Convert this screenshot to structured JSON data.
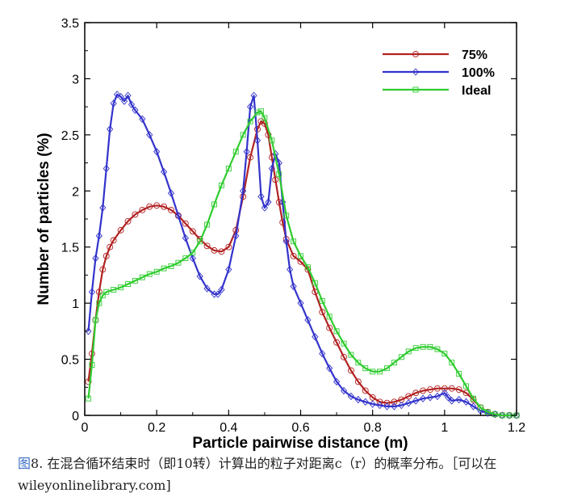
{
  "chart_data": {
    "type": "line",
    "title": "",
    "xlabel": "Particle pairwise distance (m)",
    "ylabel": "Number of particles (%)",
    "xlim": [
      0,
      1.2
    ],
    "ylim": [
      0,
      3.5
    ],
    "x_ticks": [
      0,
      0.2,
      0.4,
      0.6,
      0.8,
      1,
      1.2
    ],
    "x_tick_labels": [
      "0",
      "0.2",
      "0.4",
      "0.6",
      "0.8",
      "1",
      "1.2"
    ],
    "y_ticks": [
      0,
      0.5,
      1,
      1.5,
      2,
      2.5,
      3,
      3.5
    ],
    "y_tick_labels": [
      "0",
      "0.5",
      "1",
      "1.5",
      "2",
      "2.5",
      "3",
      "3.5"
    ],
    "legend_position": "top-right",
    "grid": false,
    "series": [
      {
        "name": "75%",
        "color": "#b22222",
        "marker": "circle",
        "points": [
          [
            0.01,
            0.3
          ],
          [
            0.02,
            0.55
          ],
          [
            0.03,
            0.85
          ],
          [
            0.04,
            1.1
          ],
          [
            0.05,
            1.3
          ],
          [
            0.06,
            1.42
          ],
          [
            0.07,
            1.5
          ],
          [
            0.08,
            1.56
          ],
          [
            0.1,
            1.65
          ],
          [
            0.12,
            1.73
          ],
          [
            0.14,
            1.79
          ],
          [
            0.16,
            1.83
          ],
          [
            0.18,
            1.86
          ],
          [
            0.2,
            1.87
          ],
          [
            0.22,
            1.86
          ],
          [
            0.24,
            1.83
          ],
          [
            0.26,
            1.78
          ],
          [
            0.28,
            1.71
          ],
          [
            0.3,
            1.64
          ],
          [
            0.32,
            1.57
          ],
          [
            0.34,
            1.51
          ],
          [
            0.36,
            1.47
          ],
          [
            0.38,
            1.46
          ],
          [
            0.4,
            1.5
          ],
          [
            0.42,
            1.65
          ],
          [
            0.44,
            1.95
          ],
          [
            0.46,
            2.3
          ],
          [
            0.48,
            2.55
          ],
          [
            0.49,
            2.62
          ],
          [
            0.5,
            2.6
          ],
          [
            0.51,
            2.5
          ],
          [
            0.52,
            2.3
          ],
          [
            0.53,
            2.1
          ],
          [
            0.54,
            1.9
          ],
          [
            0.55,
            1.72
          ],
          [
            0.56,
            1.57
          ],
          [
            0.58,
            1.42
          ],
          [
            0.6,
            1.37
          ],
          [
            0.62,
            1.3
          ],
          [
            0.64,
            1.1
          ],
          [
            0.66,
            0.92
          ],
          [
            0.68,
            0.78
          ],
          [
            0.7,
            0.65
          ],
          [
            0.72,
            0.52
          ],
          [
            0.74,
            0.4
          ],
          [
            0.76,
            0.3
          ],
          [
            0.78,
            0.22
          ],
          [
            0.8,
            0.16
          ],
          [
            0.82,
            0.12
          ],
          [
            0.84,
            0.11
          ],
          [
            0.86,
            0.12
          ],
          [
            0.88,
            0.14
          ],
          [
            0.9,
            0.17
          ],
          [
            0.92,
            0.2
          ],
          [
            0.94,
            0.22
          ],
          [
            0.96,
            0.23
          ],
          [
            0.98,
            0.24
          ],
          [
            1.0,
            0.24
          ],
          [
            1.02,
            0.24
          ],
          [
            1.04,
            0.23
          ],
          [
            1.06,
            0.2
          ],
          [
            1.08,
            0.14
          ],
          [
            1.1,
            0.07
          ],
          [
            1.12,
            0.03
          ],
          [
            1.14,
            0.01
          ],
          [
            1.16,
            0.0
          ],
          [
            1.18,
            0.0
          ],
          [
            1.2,
            0.0
          ]
        ]
      },
      {
        "name": "100%",
        "color": "#3333cc",
        "marker": "diamond",
        "points": [
          [
            0.01,
            0.75
          ],
          [
            0.02,
            1.1
          ],
          [
            0.03,
            1.4
          ],
          [
            0.04,
            1.6
          ],
          [
            0.05,
            1.85
          ],
          [
            0.06,
            2.2
          ],
          [
            0.07,
            2.55
          ],
          [
            0.08,
            2.78
          ],
          [
            0.09,
            2.86
          ],
          [
            0.1,
            2.84
          ],
          [
            0.11,
            2.8
          ],
          [
            0.12,
            2.85
          ],
          [
            0.13,
            2.77
          ],
          [
            0.14,
            2.72
          ],
          [
            0.16,
            2.64
          ],
          [
            0.18,
            2.5
          ],
          [
            0.2,
            2.35
          ],
          [
            0.22,
            2.17
          ],
          [
            0.24,
            1.98
          ],
          [
            0.26,
            1.78
          ],
          [
            0.28,
            1.58
          ],
          [
            0.3,
            1.4
          ],
          [
            0.32,
            1.24
          ],
          [
            0.34,
            1.13
          ],
          [
            0.36,
            1.08
          ],
          [
            0.37,
            1.08
          ],
          [
            0.38,
            1.12
          ],
          [
            0.4,
            1.3
          ],
          [
            0.42,
            1.6
          ],
          [
            0.44,
            2.0
          ],
          [
            0.45,
            2.35
          ],
          [
            0.46,
            2.75
          ],
          [
            0.47,
            2.85
          ],
          [
            0.48,
            2.45
          ],
          [
            0.49,
            1.95
          ],
          [
            0.5,
            1.85
          ],
          [
            0.51,
            1.9
          ],
          [
            0.52,
            2.2
          ],
          [
            0.53,
            2.33
          ],
          [
            0.54,
            2.25
          ],
          [
            0.55,
            1.9
          ],
          [
            0.56,
            1.55
          ],
          [
            0.57,
            1.3
          ],
          [
            0.58,
            1.15
          ],
          [
            0.6,
            1.0
          ],
          [
            0.62,
            0.85
          ],
          [
            0.64,
            0.7
          ],
          [
            0.66,
            0.55
          ],
          [
            0.68,
            0.42
          ],
          [
            0.7,
            0.3
          ],
          [
            0.72,
            0.22
          ],
          [
            0.74,
            0.17
          ],
          [
            0.76,
            0.14
          ],
          [
            0.78,
            0.12
          ],
          [
            0.8,
            0.1
          ],
          [
            0.82,
            0.09
          ],
          [
            0.84,
            0.08
          ],
          [
            0.86,
            0.08
          ],
          [
            0.88,
            0.09
          ],
          [
            0.9,
            0.11
          ],
          [
            0.92,
            0.13
          ],
          [
            0.94,
            0.15
          ],
          [
            0.96,
            0.16
          ],
          [
            0.98,
            0.17
          ],
          [
            1.0,
            0.2
          ],
          [
            1.01,
            0.16
          ],
          [
            1.02,
            0.13
          ],
          [
            1.04,
            0.14
          ],
          [
            1.06,
            0.12
          ],
          [
            1.08,
            0.08
          ],
          [
            1.1,
            0.04
          ],
          [
            1.12,
            0.02
          ],
          [
            1.14,
            0.01
          ],
          [
            1.16,
            0.0
          ],
          [
            1.18,
            0.0
          ],
          [
            1.2,
            0.0
          ]
        ]
      },
      {
        "name": "Ideal",
        "color": "#2fcc2f",
        "marker": "square",
        "points": [
          [
            0.01,
            0.15
          ],
          [
            0.02,
            0.45
          ],
          [
            0.03,
            0.85
          ],
          [
            0.04,
            1.0
          ],
          [
            0.05,
            1.07
          ],
          [
            0.06,
            1.1
          ],
          [
            0.08,
            1.12
          ],
          [
            0.1,
            1.14
          ],
          [
            0.12,
            1.17
          ],
          [
            0.14,
            1.2
          ],
          [
            0.16,
            1.23
          ],
          [
            0.18,
            1.26
          ],
          [
            0.2,
            1.28
          ],
          [
            0.22,
            1.31
          ],
          [
            0.24,
            1.33
          ],
          [
            0.26,
            1.36
          ],
          [
            0.28,
            1.4
          ],
          [
            0.3,
            1.45
          ],
          [
            0.32,
            1.55
          ],
          [
            0.34,
            1.7
          ],
          [
            0.36,
            1.88
          ],
          [
            0.38,
            2.05
          ],
          [
            0.4,
            2.2
          ],
          [
            0.42,
            2.35
          ],
          [
            0.44,
            2.5
          ],
          [
            0.46,
            2.62
          ],
          [
            0.48,
            2.7
          ],
          [
            0.49,
            2.71
          ],
          [
            0.5,
            2.65
          ],
          [
            0.52,
            2.45
          ],
          [
            0.54,
            2.15
          ],
          [
            0.56,
            1.78
          ],
          [
            0.58,
            1.55
          ],
          [
            0.6,
            1.42
          ],
          [
            0.62,
            1.32
          ],
          [
            0.64,
            1.18
          ],
          [
            0.66,
            1.02
          ],
          [
            0.68,
            0.88
          ],
          [
            0.7,
            0.75
          ],
          [
            0.72,
            0.64
          ],
          [
            0.74,
            0.54
          ],
          [
            0.76,
            0.47
          ],
          [
            0.78,
            0.42
          ],
          [
            0.8,
            0.39
          ],
          [
            0.82,
            0.39
          ],
          [
            0.84,
            0.42
          ],
          [
            0.86,
            0.47
          ],
          [
            0.88,
            0.52
          ],
          [
            0.9,
            0.57
          ],
          [
            0.92,
            0.6
          ],
          [
            0.94,
            0.61
          ],
          [
            0.96,
            0.61
          ],
          [
            0.98,
            0.59
          ],
          [
            1.0,
            0.55
          ],
          [
            1.02,
            0.47
          ],
          [
            1.04,
            0.37
          ],
          [
            1.06,
            0.26
          ],
          [
            1.08,
            0.15
          ],
          [
            1.1,
            0.07
          ],
          [
            1.12,
            0.03
          ],
          [
            1.14,
            0.01
          ],
          [
            1.16,
            0.0
          ],
          [
            1.18,
            0.0
          ],
          [
            1.2,
            0.0
          ]
        ]
      }
    ]
  },
  "caption": {
    "prefix": "图",
    "text": "8. 在混合循环结束时（即10转）计算出的粒子对距离c（r）的概率分布。［可以在wileyonlinelibrary.com]"
  }
}
